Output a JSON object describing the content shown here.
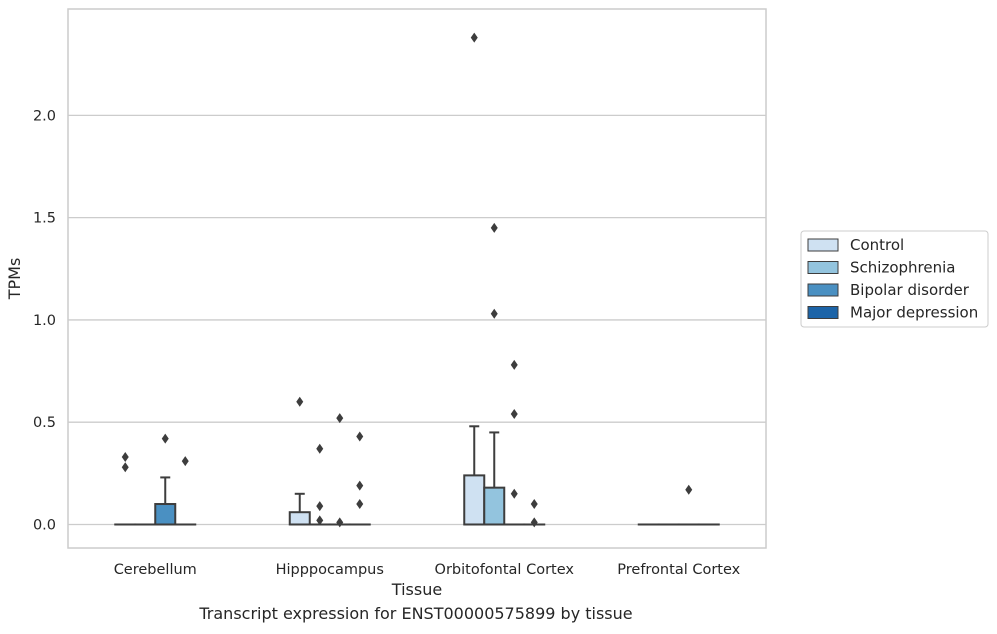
{
  "caption": "Transcript expression for ENST00000575899 by tissue",
  "chart_data": {
    "type": "box",
    "xlabel": "Tissue",
    "ylabel": "TPMs",
    "ylim": [
      -0.115,
      2.52
    ],
    "yticks": [
      0.0,
      0.5,
      1.0,
      1.5,
      2.0
    ],
    "ytick_labels": [
      "0.0",
      "0.5",
      "1.0",
      "1.5",
      "2.0"
    ],
    "grid": "horizontal",
    "legend_position": "center-right",
    "categories": [
      "Cerebellum",
      "Hipppocampus",
      "Orbitofontal Cortex",
      "Prefrontal Cortex"
    ],
    "series": [
      {
        "name": "Control",
        "color": "#cfe1f2",
        "boxes": [
          {
            "q1": 0,
            "median": 0,
            "q3": 0,
            "whisker_low": 0,
            "whisker_high": 0,
            "outliers": [
              0.33,
              0.28
            ]
          },
          {
            "q1": 0,
            "median": 0,
            "q3": 0.06,
            "whisker_low": 0,
            "whisker_high": 0.15,
            "outliers": [
              0.6
            ]
          },
          {
            "q1": 0,
            "median": 0,
            "q3": 0.24,
            "whisker_low": 0,
            "whisker_high": 0.48,
            "outliers": [
              2.38
            ]
          },
          {
            "q1": 0,
            "median": 0,
            "q3": 0,
            "whisker_low": 0,
            "whisker_high": 0,
            "outliers": []
          }
        ]
      },
      {
        "name": "Schizophrenia",
        "color": "#93c4de",
        "boxes": [
          {
            "q1": 0,
            "median": 0,
            "q3": 0,
            "whisker_low": 0,
            "whisker_high": 0,
            "outliers": []
          },
          {
            "q1": 0,
            "median": 0,
            "q3": 0,
            "whisker_low": 0,
            "whisker_high": 0,
            "outliers": [
              0.37,
              0.09,
              0.02
            ]
          },
          {
            "q1": 0,
            "median": 0,
            "q3": 0.18,
            "whisker_low": 0,
            "whisker_high": 0.45,
            "outliers": [
              1.45,
              1.03
            ]
          },
          {
            "q1": 0,
            "median": 0,
            "q3": 0,
            "whisker_low": 0,
            "whisker_high": 0,
            "outliers": []
          }
        ]
      },
      {
        "name": "Bipolar disorder",
        "color": "#4a90c2",
        "boxes": [
          {
            "q1": 0,
            "median": 0,
            "q3": 0.1,
            "whisker_low": 0,
            "whisker_high": 0.23,
            "outliers": [
              0.42
            ]
          },
          {
            "q1": 0,
            "median": 0,
            "q3": 0,
            "whisker_low": 0,
            "whisker_high": 0,
            "outliers": [
              0.52,
              0.01
            ]
          },
          {
            "q1": 0,
            "median": 0,
            "q3": 0,
            "whisker_low": 0,
            "whisker_high": 0,
            "outliers": [
              0.78,
              0.54,
              0.15
            ]
          },
          {
            "q1": 0,
            "median": 0,
            "q3": 0,
            "whisker_low": 0,
            "whisker_high": 0,
            "outliers": [
              0.17
            ]
          }
        ]
      },
      {
        "name": "Major depression",
        "color": "#1c64a8",
        "boxes": [
          {
            "q1": 0,
            "median": 0,
            "q3": 0,
            "whisker_low": 0,
            "whisker_high": 0,
            "outliers": [
              0.31
            ]
          },
          {
            "q1": 0,
            "median": 0,
            "q3": 0,
            "whisker_low": 0,
            "whisker_high": 0,
            "outliers": [
              0.43,
              0.19,
              0.1
            ]
          },
          {
            "q1": 0,
            "median": 0,
            "q3": 0,
            "whisker_low": 0,
            "whisker_high": 0,
            "outliers": [
              0.1,
              0.01
            ]
          },
          {
            "q1": 0,
            "median": 0,
            "q3": 0,
            "whisker_low": 0,
            "whisker_high": 0,
            "outliers": []
          }
        ]
      }
    ]
  }
}
